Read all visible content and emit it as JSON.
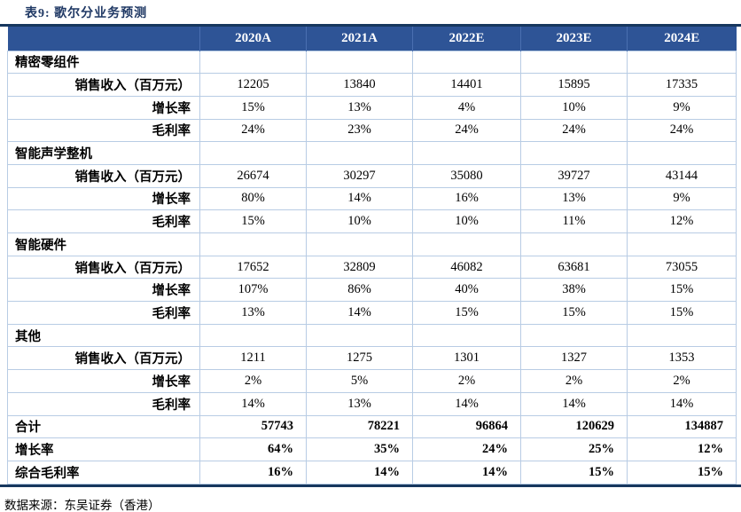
{
  "title": "表9:  歌尔分业务预测",
  "table": {
    "columns": [
      "2020A",
      "2021A",
      "2022E",
      "2023E",
      "2024E"
    ],
    "rows": [
      {
        "type": "section",
        "label": "精密零组件",
        "values": [
          "",
          "",
          "",
          "",
          ""
        ]
      },
      {
        "type": "sub",
        "label": "销售收入（百万元）",
        "values": [
          "12205",
          "13840",
          "14401",
          "15895",
          "17335"
        ]
      },
      {
        "type": "sub",
        "label": "增长率",
        "values": [
          "15%",
          "13%",
          "4%",
          "10%",
          "9%"
        ]
      },
      {
        "type": "sub",
        "label": "毛利率",
        "values": [
          "24%",
          "23%",
          "24%",
          "24%",
          "24%"
        ]
      },
      {
        "type": "section",
        "label": "智能声学整机",
        "values": [
          "",
          "",
          "",
          "",
          ""
        ]
      },
      {
        "type": "sub",
        "label": "销售收入（百万元）",
        "values": [
          "26674",
          "30297",
          "35080",
          "39727",
          "43144"
        ]
      },
      {
        "type": "sub",
        "label": "增长率",
        "values": [
          "80%",
          "14%",
          "16%",
          "13%",
          "9%"
        ]
      },
      {
        "type": "sub",
        "label": "毛利率",
        "values": [
          "15%",
          "10%",
          "10%",
          "11%",
          "12%"
        ]
      },
      {
        "type": "section",
        "label": "智能硬件",
        "values": [
          "",
          "",
          "",
          "",
          ""
        ]
      },
      {
        "type": "sub",
        "label": "销售收入（百万元）",
        "values": [
          "17652",
          "32809",
          "46082",
          "63681",
          "73055"
        ]
      },
      {
        "type": "sub",
        "label": "增长率",
        "values": [
          "107%",
          "86%",
          "40%",
          "38%",
          "15%"
        ]
      },
      {
        "type": "sub",
        "label": "毛利率",
        "values": [
          "13%",
          "14%",
          "15%",
          "15%",
          "15%"
        ]
      },
      {
        "type": "section",
        "label": "其他",
        "values": [
          "",
          "",
          "",
          "",
          ""
        ]
      },
      {
        "type": "sub",
        "label": "销售收入（百万元）",
        "values": [
          "1211",
          "1275",
          "1301",
          "1327",
          "1353"
        ]
      },
      {
        "type": "sub",
        "label": "增长率",
        "values": [
          "2%",
          "5%",
          "2%",
          "2%",
          "2%"
        ]
      },
      {
        "type": "sub",
        "label": "毛利率",
        "values": [
          "14%",
          "13%",
          "14%",
          "14%",
          "14%"
        ]
      },
      {
        "type": "total",
        "label": "合计",
        "values": [
          "57743",
          "78221",
          "96864",
          "120629",
          "134887"
        ]
      },
      {
        "type": "total",
        "label": "增长率",
        "values": [
          "64%",
          "35%",
          "24%",
          "25%",
          "12%"
        ]
      },
      {
        "type": "total",
        "label": "综合毛利率",
        "values": [
          "16%",
          "14%",
          "14%",
          "15%",
          "15%"
        ]
      }
    ]
  },
  "footer": {
    "source": "数据来源：东吴证券（香港）"
  },
  "colors": {
    "header_bg": "#2E5496",
    "header_text": "#FFFFFF",
    "title_text": "#1F3864",
    "thick_rule": "#17375E",
    "grid_line": "#B8CCE4"
  }
}
